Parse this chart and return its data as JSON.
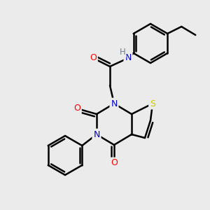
{
  "background_color": "#ebebeb",
  "atom_colors": {
    "C": "#000000",
    "N": "#0000cc",
    "O": "#ff0000",
    "S": "#cccc00",
    "H": "#708090"
  },
  "bond_color": "#000000",
  "bond_width": 1.8,
  "figsize": [
    3.0,
    3.0
  ],
  "dpi": 100
}
